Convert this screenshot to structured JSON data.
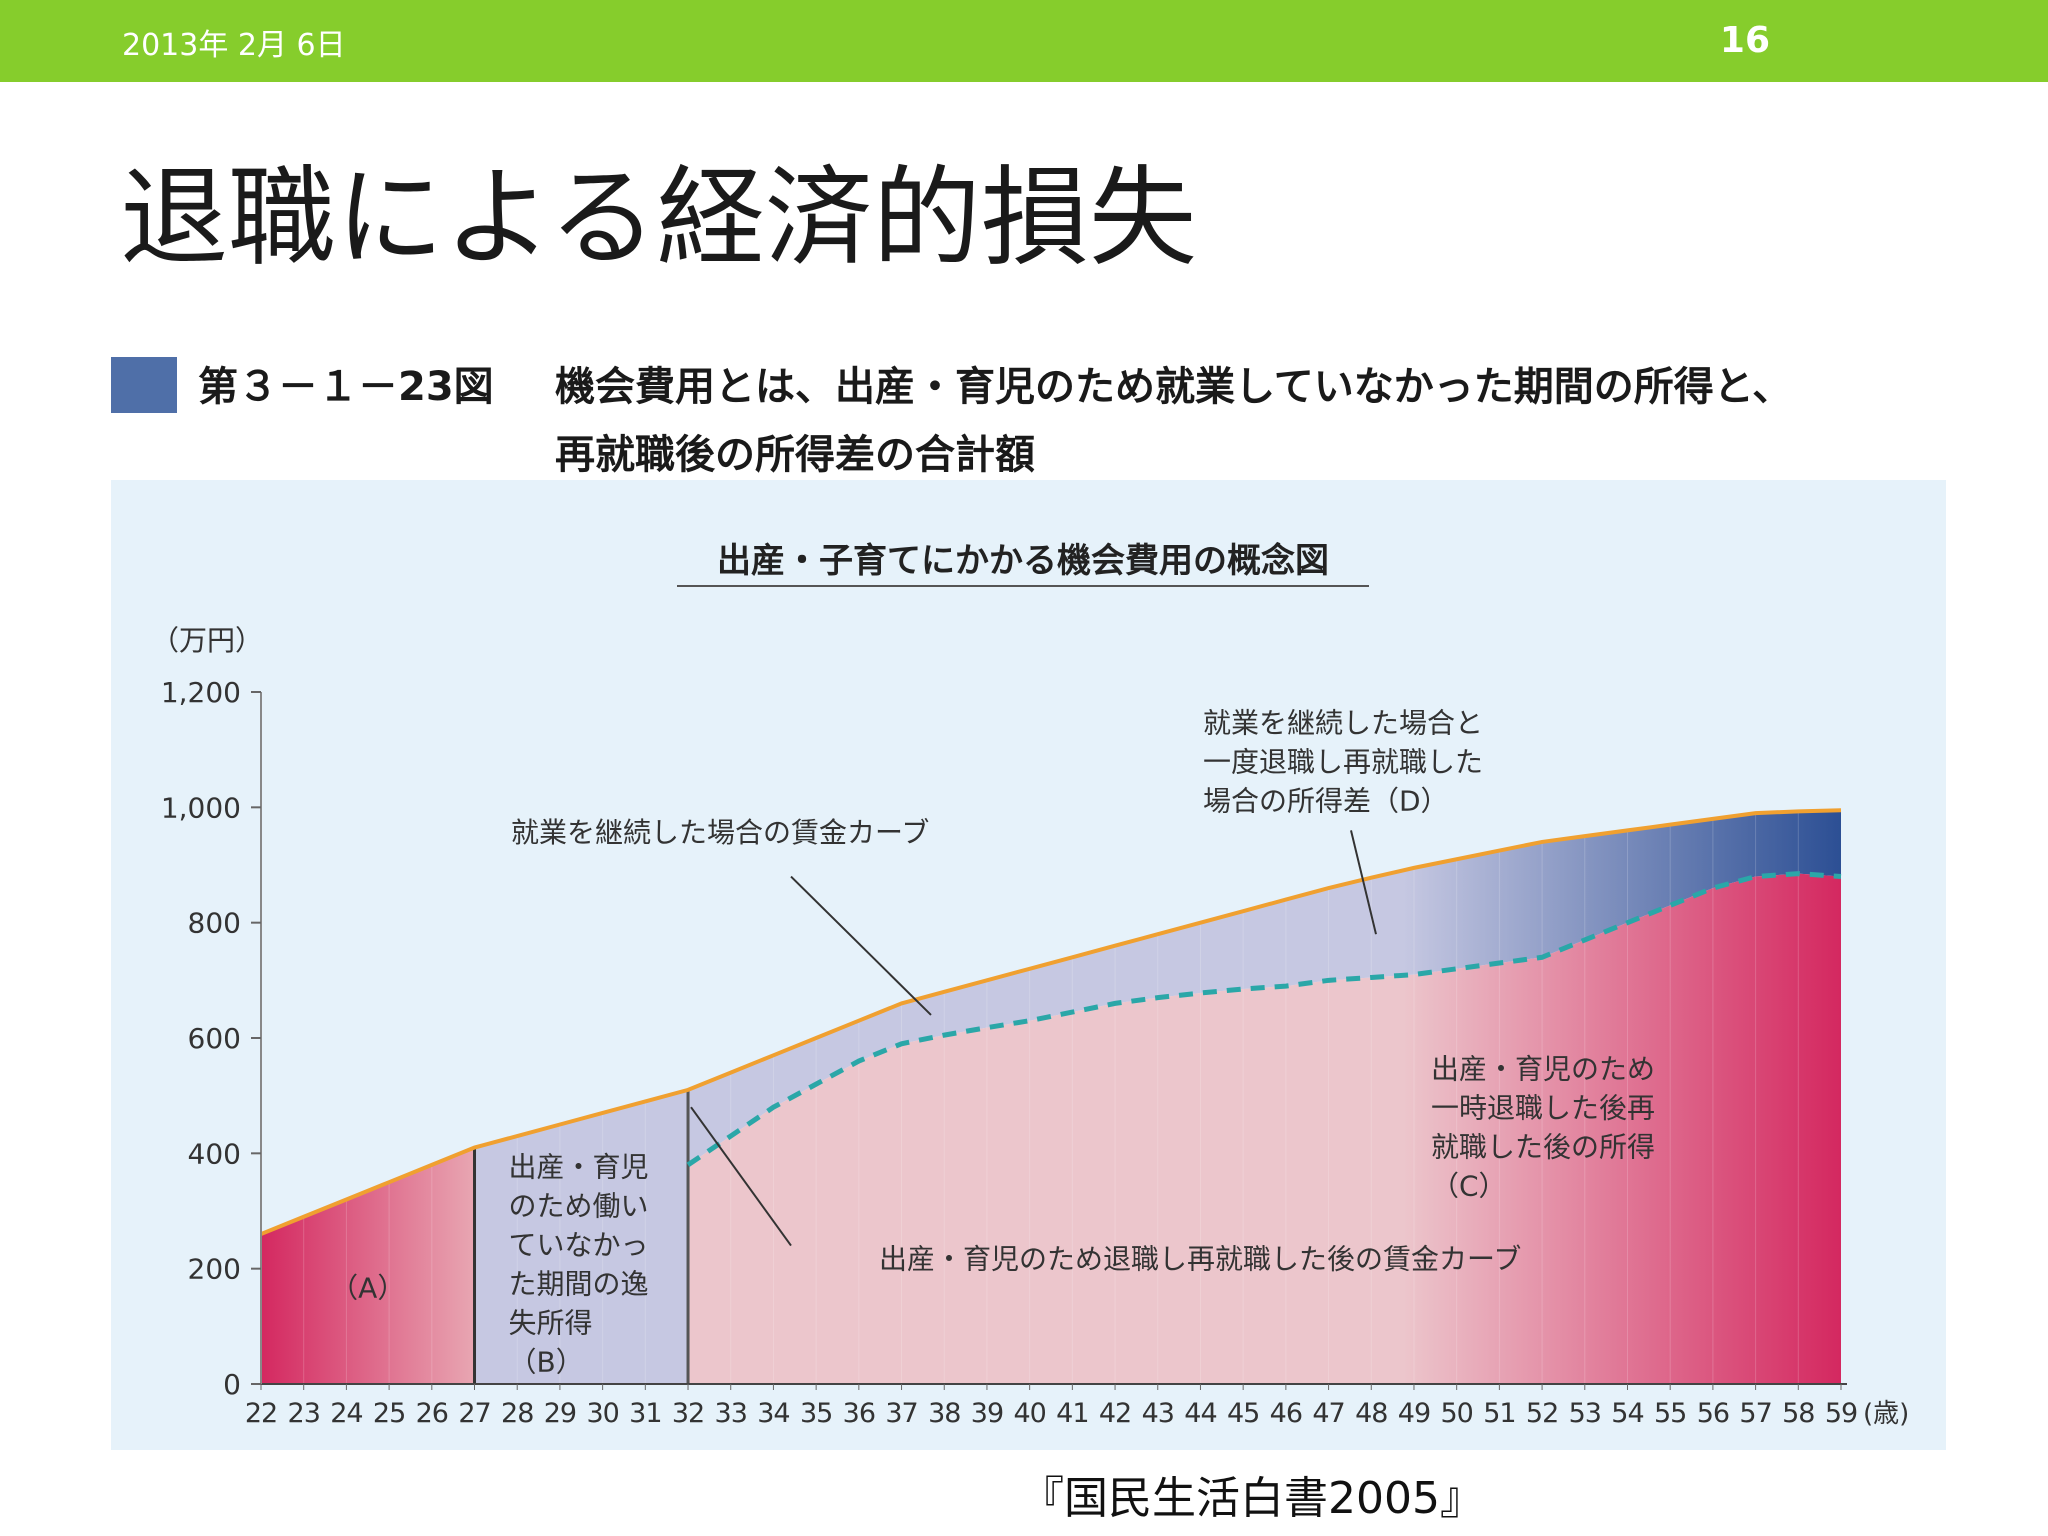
{
  "header": {
    "date": "2013年 2月 6日",
    "page": "16"
  },
  "slide": {
    "title": "退職による経済的損失"
  },
  "figure": {
    "number": "第３－１－23図",
    "caption_line1": "機会費用とは、出産・育児のため就業していなかった期間の所得と、",
    "caption_line2": "再就職後の所得差の合計額",
    "accent_color": "#4f6fa8"
  },
  "chart_data": {
    "type": "area",
    "title": "出産・子育てにかかる機会費用の概念図",
    "ylabel": "（万円）",
    "xunit": "(歳)",
    "ylim": [
      0,
      1200
    ],
    "yticks": [
      0,
      200,
      400,
      600,
      800,
      1000,
      1200
    ],
    "ytick_labels": [
      "0",
      "200",
      "400",
      "600",
      "800",
      "1,000",
      "1,200"
    ],
    "x": [
      22,
      23,
      24,
      25,
      26,
      27,
      28,
      29,
      30,
      31,
      32,
      33,
      34,
      35,
      36,
      37,
      38,
      39,
      40,
      41,
      42,
      43,
      44,
      45,
      46,
      47,
      48,
      49,
      50,
      51,
      52,
      53,
      54,
      55,
      56,
      57,
      58,
      59
    ],
    "series": [
      {
        "name": "就業を継続した場合の賃金カーブ",
        "values": [
          260,
          290,
          320,
          350,
          380,
          410,
          430,
          450,
          470,
          490,
          510,
          540,
          570,
          600,
          630,
          660,
          680,
          700,
          720,
          740,
          760,
          780,
          800,
          820,
          840,
          860,
          878,
          895,
          910,
          925,
          940,
          950,
          960,
          970,
          980,
          990,
          993,
          995
        ],
        "color": "#f0a030"
      },
      {
        "name": "出産・育児のため退職し再就職した後の賃金カーブ",
        "values": [
          null,
          null,
          null,
          null,
          null,
          null,
          null,
          null,
          null,
          null,
          380,
          430,
          480,
          520,
          560,
          590,
          605,
          618,
          630,
          645,
          660,
          670,
          678,
          685,
          690,
          700,
          705,
          710,
          720,
          730,
          740,
          770,
          800,
          830,
          860,
          880,
          885,
          880
        ],
        "color": "#2aa7a8"
      }
    ],
    "regions": [
      {
        "label": "（A）",
        "from": 22,
        "to": 27
      },
      {
        "label_lines": [
          "出産・育児",
          "のため働い",
          "ていなかっ",
          "た期間の逸",
          "失所得",
          "（B）"
        ],
        "from": 27,
        "to": 32
      },
      {
        "label_lines": [
          "出産・育児のため",
          "一時退職した後再",
          "就職した後の所得",
          "（C）"
        ],
        "from": 32,
        "to": 59
      },
      {
        "label_lines": [
          "就業を継続した場合と",
          "一度退職し再就職した",
          "場合の所得差（D）"
        ],
        "from": 32,
        "to": 59
      }
    ],
    "colors": {
      "a_dark": "#d42860",
      "a_light": "#e8a6b2",
      "b_fill": "#c6c8e2",
      "c_fill": "#ecc6cc",
      "c_end_dark": "#d42860",
      "d_fill": "#c6c8e2",
      "d_end_dark": "#2c4f94"
    }
  },
  "source": "『国民生活白書2005』"
}
